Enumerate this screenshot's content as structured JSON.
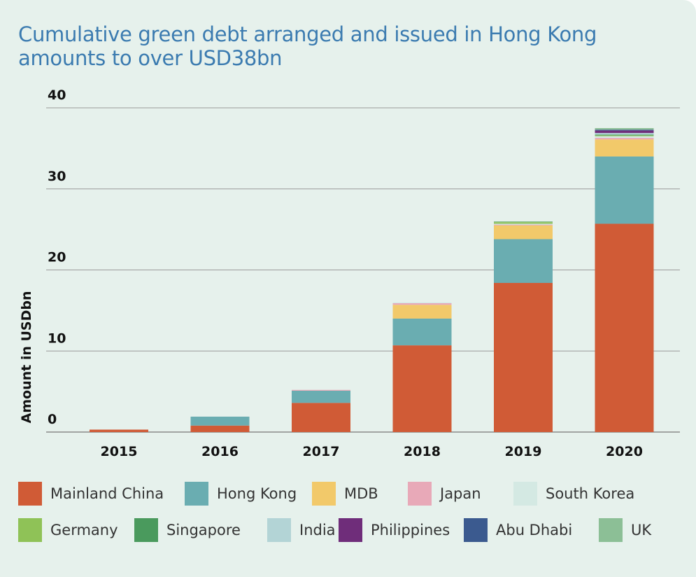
{
  "title_line1": "Cumulative green debt arranged and issued in Hong Kong",
  "title_line2": "amounts to over USD38bn",
  "chart_data": {
    "type": "bar",
    "stacked": true,
    "title": "Cumulative green debt arranged and issued in Hong Kong amounts to over USD38bn",
    "xlabel": "",
    "ylabel": "Amount in USDbn",
    "ylim": [
      0,
      40
    ],
    "yticks": [
      0,
      10,
      20,
      30,
      40
    ],
    "grid": true,
    "legend_position": "bottom",
    "categories": [
      "2015",
      "2016",
      "2017",
      "2018",
      "2019",
      "2020"
    ],
    "series": [
      {
        "name": "Mainland China",
        "color": "#d05b36",
        "values": [
          0.3,
          0.8,
          3.6,
          10.7,
          18.4,
          25.7
        ]
      },
      {
        "name": "Hong Kong",
        "color": "#6aadb1",
        "values": [
          0,
          1.1,
          1.5,
          3.3,
          5.4,
          8.3
        ]
      },
      {
        "name": "MDB",
        "color": "#f2c96a",
        "values": [
          0,
          0,
          0,
          1.7,
          1.7,
          2.1
        ]
      },
      {
        "name": "Japan",
        "color": "#e8a9b8",
        "values": [
          0,
          0,
          0.1,
          0.2,
          0.1,
          0.2
        ]
      },
      {
        "name": "South Korea",
        "color": "#d4e9e3",
        "values": [
          0,
          0,
          0,
          0.1,
          0.1,
          0.2
        ]
      },
      {
        "name": "Germany",
        "color": "#8fc257",
        "values": [
          0,
          0,
          0,
          0,
          0.2,
          0.1
        ]
      },
      {
        "name": "Singapore",
        "color": "#4a9a5d",
        "values": [
          0,
          0,
          0,
          0,
          0,
          0.1
        ]
      },
      {
        "name": "India",
        "color": "#b3d4d6",
        "values": [
          0,
          0,
          0,
          0,
          0,
          0.2
        ]
      },
      {
        "name": "Philippines",
        "color": "#6f2d7a",
        "values": [
          0,
          0,
          0,
          0,
          0,
          0.3
        ]
      },
      {
        "name": "Abu Dhabi",
        "color": "#3b5a8f",
        "values": [
          0,
          0,
          0,
          0,
          0,
          0.1
        ]
      },
      {
        "name": "UK",
        "color": "#8cbf96",
        "values": [
          0,
          0,
          0,
          0,
          0.1,
          0.2
        ]
      }
    ]
  }
}
